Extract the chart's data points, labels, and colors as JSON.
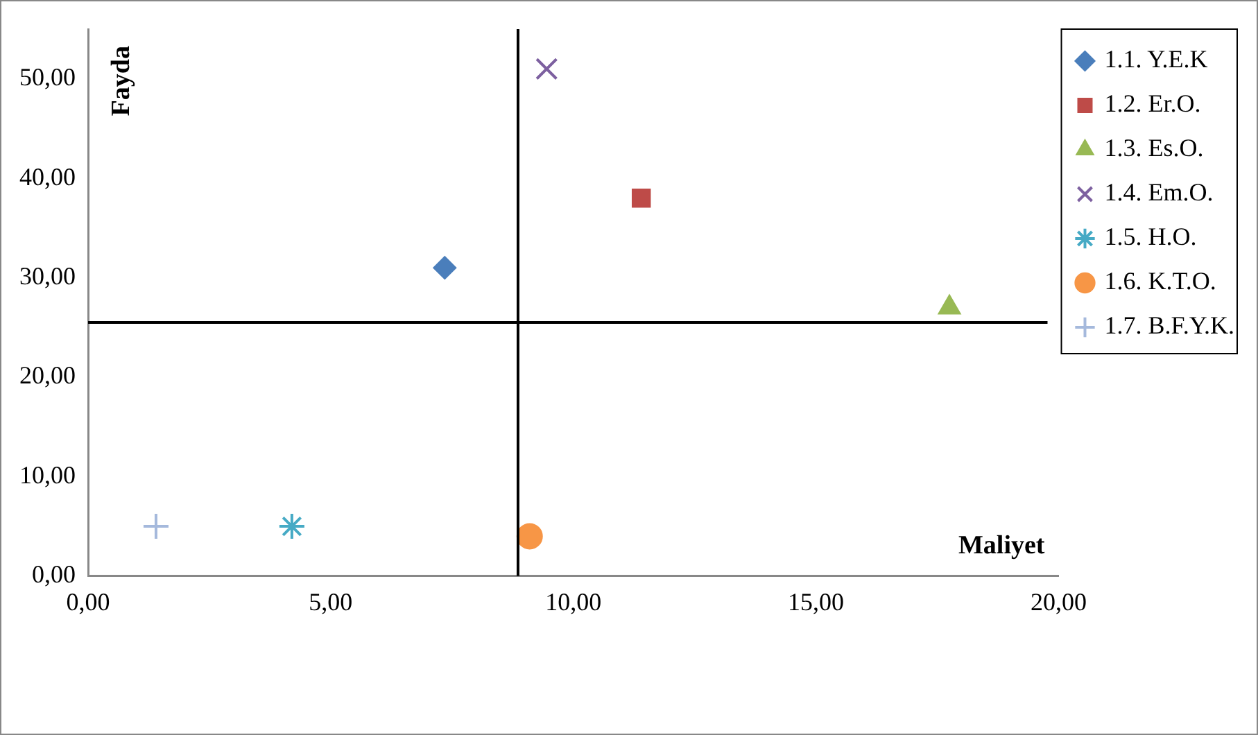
{
  "chart_data": {
    "type": "scatter",
    "xlabel": "Maliyet",
    "ylabel": "Fayda",
    "xlim": [
      0,
      20
    ],
    "xticks": [
      {
        "value": 0,
        "label": "0,00"
      },
      {
        "value": 5,
        "label": "5,00"
      },
      {
        "value": 10,
        "label": "10,00"
      },
      {
        "value": 15,
        "label": "15,00"
      },
      {
        "value": 20,
        "label": "20,00"
      }
    ],
    "ylim": [
      0,
      55
    ],
    "yticks": [
      {
        "value": 0,
        "label": "0,00"
      },
      {
        "value": 10,
        "label": "10,00"
      },
      {
        "value": 20,
        "label": "20,00"
      },
      {
        "value": 30,
        "label": "30,00"
      },
      {
        "value": 40,
        "label": "40,00"
      },
      {
        "value": 50,
        "label": "50,00"
      }
    ],
    "grid": false,
    "legend": "right",
    "ref_lines": [
      {
        "axis": "x",
        "value": 8.86,
        "color": "#000000"
      },
      {
        "axis": "y",
        "value": 25.5,
        "color": "#000000"
      }
    ],
    "series": [
      {
        "name": "1.1. Y.E.K",
        "color": "#4a7ebb",
        "marker": "diamond",
        "x": [
          7.35
        ],
        "values": [
          31
        ]
      },
      {
        "name": "1.2. Er.O.",
        "color": "#be4b48",
        "marker": "square",
        "x": [
          11.4
        ],
        "values": [
          38
        ]
      },
      {
        "name": "1.3. Es.O.",
        "color": "#98b954",
        "marker": "triangle",
        "x": [
          17.75
        ],
        "values": [
          27
        ]
      },
      {
        "name": "1.4. Em.O.",
        "color": "#7d60a0",
        "marker": "x",
        "x": [
          9.45
        ],
        "values": [
          51
        ]
      },
      {
        "name": "1.5. H.O.",
        "color": "#46aac5",
        "marker": "cross",
        "x": [
          4.2
        ],
        "values": [
          5
        ]
      },
      {
        "name": "1.6. K.T.O.",
        "color": "#f79646",
        "marker": "circle",
        "x": [
          9.1
        ],
        "values": [
          4
        ]
      },
      {
        "name": "1.7. B.F.Y.K.",
        "color": "#a5b9dc",
        "marker": "plus",
        "x": [
          1.4
        ],
        "values": [
          5
        ]
      }
    ]
  }
}
